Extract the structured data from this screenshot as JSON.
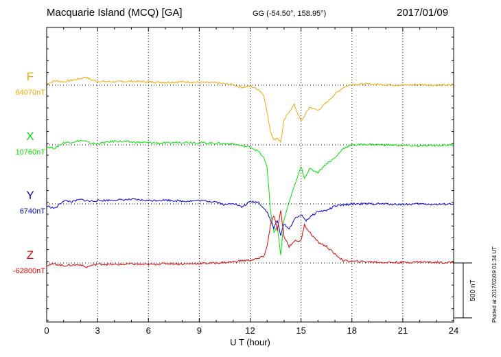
{
  "header": {
    "station": "Macquarie Island (MCQ)  [GA]",
    "coords": "GG (-54.50°, 158.95°)",
    "date": "2017/01/09"
  },
  "plotted_note": "Plotted at 2017/02/09 01:34 UT",
  "chart_data": {
    "type": "line",
    "title": "Macquarie Island (MCQ)  [GA]",
    "xlabel": "U T (hour)",
    "xlim": [
      0,
      24
    ],
    "xticks": [
      "0",
      "3",
      "6",
      "9",
      "12",
      "15",
      "18",
      "21",
      "24"
    ],
    "grid": true,
    "scale_bar": {
      "value": 500,
      "label": "500 nT"
    },
    "series": [
      {
        "name": "F",
        "baseline_label": "64070nT",
        "color": "#f5a800",
        "x": [
          0,
          0.5,
          1,
          1.5,
          2,
          2.3,
          2.6,
          3,
          4,
          5,
          6,
          7,
          8,
          9,
          10,
          11,
          11.5,
          12,
          12.5,
          12.8,
          13,
          13.2,
          13.4,
          13.6,
          13.8,
          14,
          14.3,
          14.6,
          15,
          15.2,
          15.5,
          16,
          16.5,
          17,
          17.5,
          18,
          19,
          20,
          21,
          22,
          23,
          24
        ],
        "y": [
          10,
          40,
          30,
          45,
          60,
          75,
          50,
          35,
          30,
          35,
          30,
          25,
          30,
          25,
          20,
          5,
          -20,
          -10,
          -40,
          -90,
          -250,
          -420,
          -500,
          -480,
          -520,
          -320,
          -240,
          -180,
          -330,
          -280,
          -200,
          -230,
          -160,
          -80,
          -20,
          10,
          10,
          5,
          0,
          5,
          0,
          0
        ]
      },
      {
        "name": "X",
        "baseline_label": "10760nT",
        "color": "#00e600",
        "x": [
          0,
          0.5,
          1,
          1.5,
          2,
          2.3,
          2.6,
          3,
          4,
          5,
          6,
          7,
          8,
          9,
          10,
          11,
          11.5,
          12,
          12.5,
          12.8,
          13,
          13.2,
          13.4,
          13.6,
          13.8,
          14,
          14.3,
          14.6,
          15,
          15.2,
          15.5,
          16,
          16.5,
          17,
          17.5,
          18,
          19,
          20,
          21,
          22,
          23,
          24
        ],
        "y": [
          -20,
          -30,
          20,
          25,
          40,
          30,
          15,
          10,
          35,
          25,
          20,
          15,
          25,
          20,
          15,
          10,
          -10,
          -20,
          -60,
          -120,
          -200,
          -600,
          -800,
          -750,
          -1000,
          -680,
          -520,
          -380,
          -200,
          -300,
          -220,
          -250,
          -170,
          -120,
          -30,
          0,
          5,
          0,
          -5,
          -10,
          -5,
          0
        ]
      },
      {
        "name": "Y",
        "baseline_label": "6740nT",
        "color": "#0000e6",
        "x": [
          0,
          0.5,
          1,
          1.5,
          2,
          2.5,
          3,
          4,
          5,
          6,
          7,
          8,
          9,
          10,
          10.5,
          11,
          11.5,
          12,
          12.5,
          12.8,
          13,
          13.2,
          13.4,
          13.6,
          13.8,
          14,
          14.3,
          14.6,
          15,
          15.3,
          15.7,
          16,
          16.5,
          17,
          17.5,
          18,
          19,
          20,
          21,
          22,
          23,
          24
        ],
        "y": [
          -20,
          -40,
          30,
          20,
          40,
          25,
          30,
          35,
          40,
          30,
          35,
          25,
          30,
          20,
          -10,
          10,
          -30,
          20,
          15,
          -40,
          -70,
          -150,
          -220,
          -150,
          -280,
          -180,
          -230,
          -140,
          -100,
          -150,
          -100,
          -70,
          -60,
          -20,
          -10,
          0,
          0,
          0,
          -5,
          0,
          -5,
          0
        ]
      },
      {
        "name": "Z",
        "baseline_label": "-62800nT",
        "color": "#e60000",
        "x": [
          0,
          0.5,
          1,
          1.5,
          2,
          2.3,
          2.6,
          3,
          4,
          5,
          6,
          7,
          8,
          9,
          10,
          11,
          11.5,
          12,
          12.5,
          12.8,
          13,
          13.2,
          13.4,
          13.6,
          13.8,
          14,
          14.3,
          14.6,
          15,
          15.2,
          15.5,
          16,
          16.5,
          17,
          17.5,
          18,
          19,
          20,
          21,
          22,
          23,
          24
        ],
        "y": [
          -20,
          -10,
          -25,
          -20,
          -15,
          -40,
          -25,
          -10,
          -15,
          -10,
          -15,
          -5,
          -10,
          -5,
          0,
          10,
          20,
          25,
          40,
          60,
          150,
          350,
          430,
          300,
          470,
          240,
          150,
          200,
          200,
          350,
          280,
          190,
          150,
          80,
          20,
          15,
          10,
          5,
          5,
          10,
          5,
          5
        ]
      }
    ]
  }
}
